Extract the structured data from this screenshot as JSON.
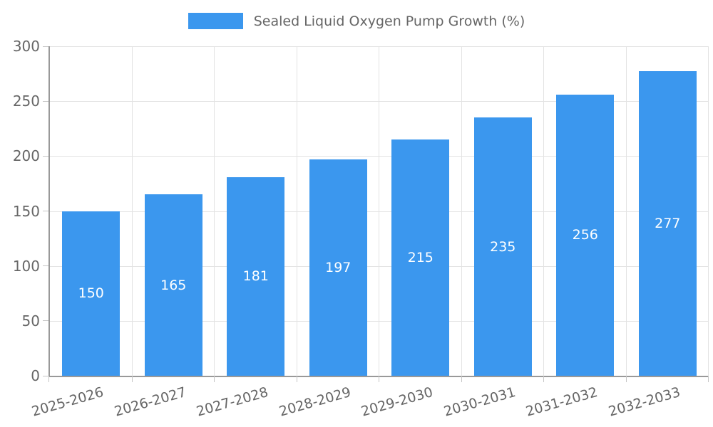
{
  "legend": {
    "label": "Sealed Liquid Oxygen Pump Growth (%)",
    "swatch_color": "#3b97ee"
  },
  "chart_data": {
    "type": "bar",
    "title": "Sealed Liquid Oxygen Pump Growth (%)",
    "series_name": "Sealed Liquid Oxygen Pump Growth (%)",
    "categories": [
      "2025-2026",
      "2026-2027",
      "2027-2028",
      "2028-2029",
      "2029-2030",
      "2030-2031",
      "2031-2032",
      "2032-2033"
    ],
    "values": [
      150,
      165,
      181,
      197,
      215,
      235,
      256,
      277
    ],
    "xlabel": "",
    "ylabel": "",
    "ylim": [
      0,
      300
    ],
    "yticks": [
      0,
      50,
      100,
      150,
      200,
      250,
      300
    ],
    "grid": true,
    "legend_position": "top-center",
    "bar_color": "#3b97ee",
    "value_label_color": "#ffffff",
    "axis_color": "#999999",
    "grid_color": "#e3e3e3",
    "tick_label_color": "#666666"
  }
}
